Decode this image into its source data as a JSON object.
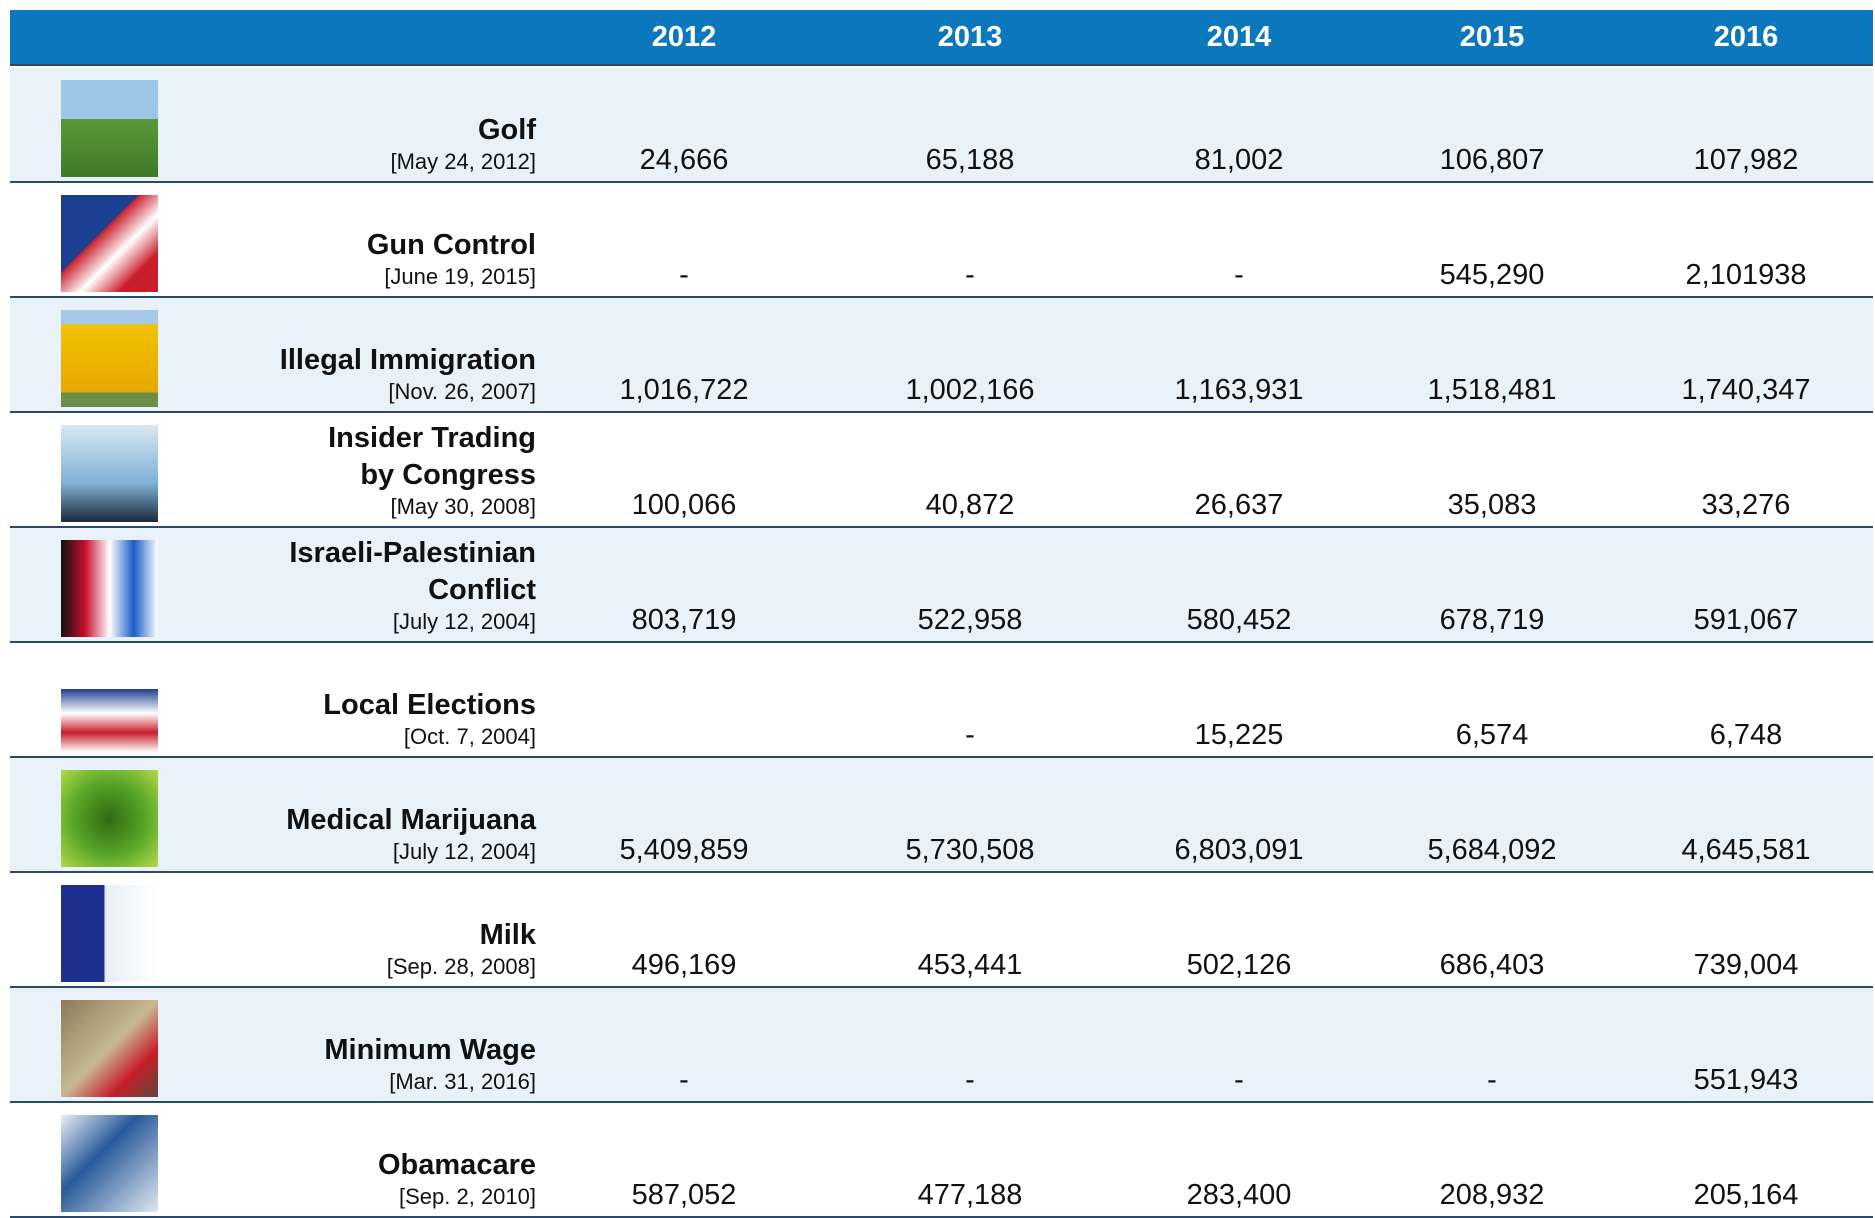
{
  "header": {
    "years": [
      "2012",
      "2013",
      "2014",
      "2015",
      "2016"
    ]
  },
  "rows": [
    {
      "topic": [
        "Golf"
      ],
      "date": "[May 24, 2012]",
      "values": [
        "24,666",
        "65,188",
        "81,002",
        "106,807",
        "107,982"
      ]
    },
    {
      "topic": [
        "Gun Control"
      ],
      "date": "[June 19, 2015]",
      "values": [
        "-",
        "-",
        "-",
        "545,290",
        "2,101938"
      ]
    },
    {
      "topic": [
        "Illegal Immigration"
      ],
      "date": "[Nov. 26, 2007]",
      "values": [
        "1,016,722",
        "1,002,166",
        "1,163,931",
        "1,518,481",
        "1,740,347"
      ]
    },
    {
      "topic": [
        "Insider Trading",
        "by Congress"
      ],
      "date": "[May 30, 2008]",
      "values": [
        "100,066",
        "40,872",
        "26,637",
        "35,083",
        "33,276"
      ]
    },
    {
      "topic": [
        "Israeli-Palestinian",
        "Conflict"
      ],
      "date": "[July 12, 2004]",
      "values": [
        "803,719",
        "522,958",
        "580,452",
        "678,719",
        "591,067"
      ]
    },
    {
      "topic": [
        "Local Elections"
      ],
      "date": "[Oct. 7, 2004]",
      "values": [
        null,
        "-",
        "15,225",
        "6,574",
        "6,748"
      ]
    },
    {
      "topic": [
        "Medical Marijuana"
      ],
      "date": "[July 12, 2004]",
      "values": [
        "5,409,859",
        "5,730,508",
        "6,803,091",
        "5,684,092",
        "4,645,581"
      ]
    },
    {
      "topic": [
        "Milk"
      ],
      "date": "[Sep. 28, 2008]",
      "values": [
        "496,169",
        "453,441",
        "502,126",
        "686,403",
        "739,004"
      ]
    },
    {
      "topic": [
        "Minimum Wage"
      ],
      "date": "[Mar. 31, 2016]",
      "values": [
        "-",
        "-",
        "-",
        "-",
        "551,943"
      ]
    },
    {
      "topic": [
        "Obamacare"
      ],
      "date": "[Sep. 2, 2010]",
      "values": [
        "587,052",
        "477,188",
        "283,400",
        "208,932",
        "205,164"
      ]
    }
  ]
}
